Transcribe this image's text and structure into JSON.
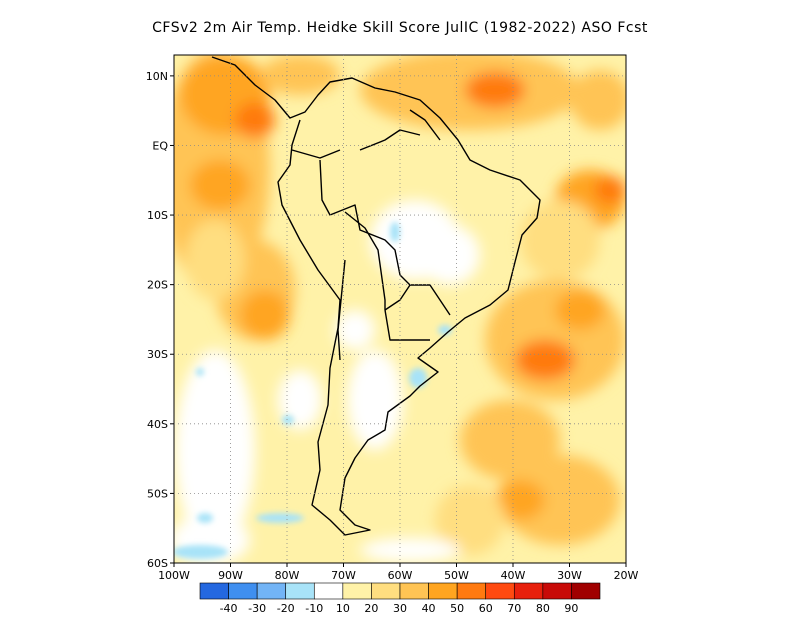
{
  "title": "CFSv2  2m Air Temp. Heidke Skill Score JulIC (1982-2022) ASO Fcst",
  "map": {
    "lon_range": [
      -100,
      -20
    ],
    "lat_range": [
      -60,
      13
    ],
    "lat_ticks": [
      {
        "lat": 10,
        "label": "10N"
      },
      {
        "lat": 0,
        "label": "EQ"
      },
      {
        "lat": -10,
        "label": "10S"
      },
      {
        "lat": -20,
        "label": "20S"
      },
      {
        "lat": -30,
        "label": "30S"
      },
      {
        "lat": -40,
        "label": "40S"
      },
      {
        "lat": -50,
        "label": "50S"
      },
      {
        "lat": -60,
        "label": "60S"
      }
    ],
    "lon_ticks": [
      {
        "lon": -100,
        "label": "100W"
      },
      {
        "lon": -90,
        "label": "90W"
      },
      {
        "lon": -80,
        "label": "80W"
      },
      {
        "lon": -70,
        "label": "70W"
      },
      {
        "lon": -60,
        "label": "60W"
      },
      {
        "lon": -50,
        "label": "50W"
      },
      {
        "lon": -40,
        "label": "40W"
      },
      {
        "lon": -30,
        "label": "30W"
      },
      {
        "lon": -20,
        "label": "20W"
      }
    ]
  },
  "colorbar": {
    "colors": [
      "#2468e0",
      "#3f8ff0",
      "#72b4f6",
      "#a8e3f8",
      "#ffffff",
      "#fff2a8",
      "#ffde80",
      "#ffc454",
      "#ffa520",
      "#ff7a10",
      "#ff4a10",
      "#e8200c",
      "#c80a08",
      "#a00000"
    ],
    "labels": [
      "-40",
      "-30",
      "-20",
      "-10",
      "10",
      "20",
      "30",
      "40",
      "50",
      "60",
      "70",
      "80",
      "90"
    ]
  }
}
